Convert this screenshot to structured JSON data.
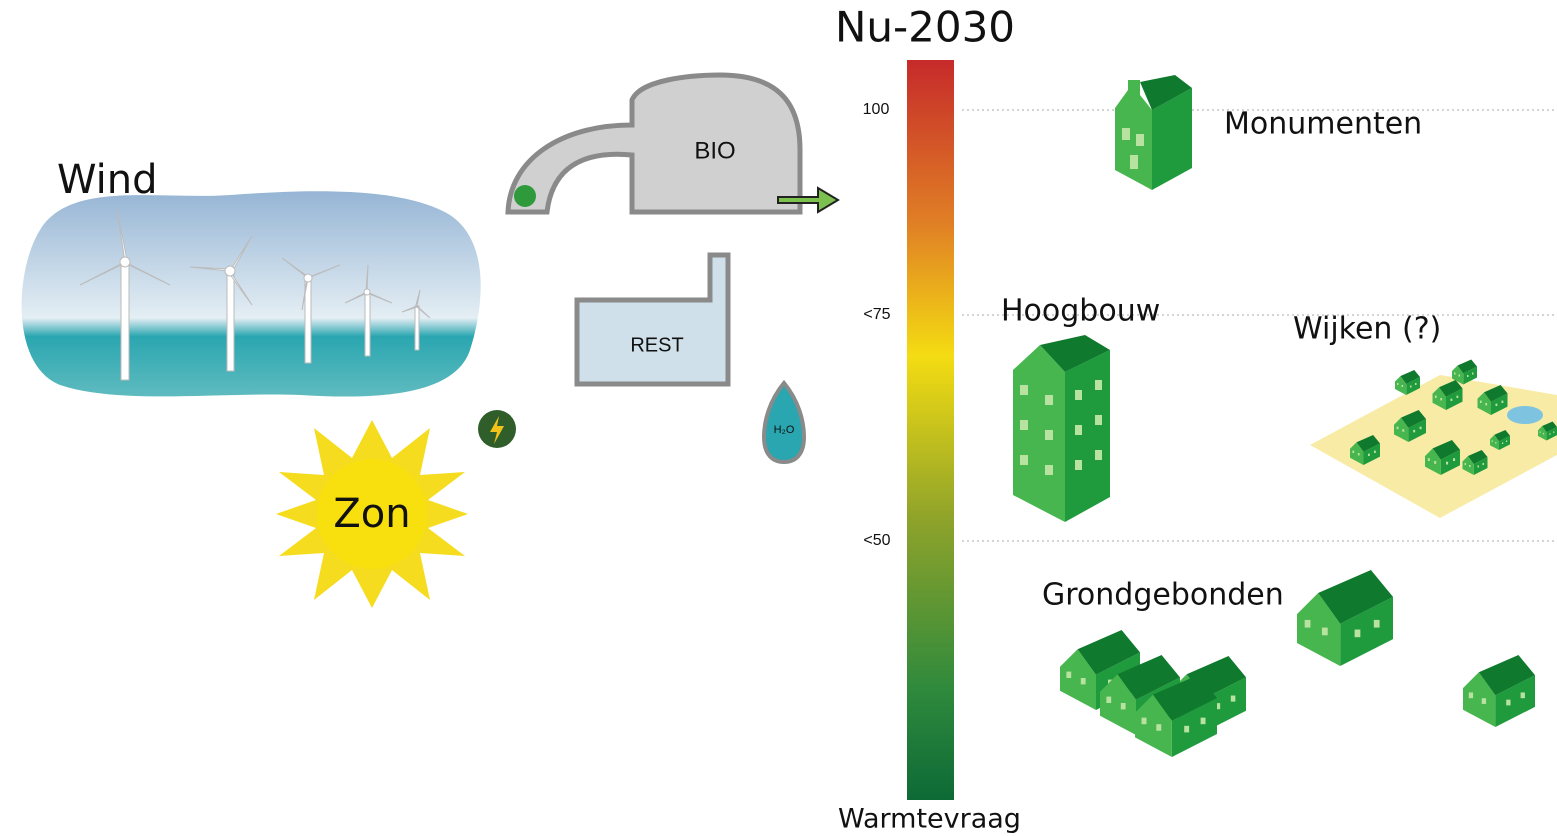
{
  "title": "Nu-2030",
  "sources": {
    "wind": "Wind",
    "sun": "Zon",
    "bio": "BIO",
    "rest": "REST",
    "water": "H₂O"
  },
  "scale": {
    "ticks": [
      "100",
      "<75",
      "<50"
    ],
    "axis_label": "Warmtevraag"
  },
  "building_types": {
    "monuments": "Monumenten",
    "high_rise": "Hoogbouw",
    "districts": "Wijken (?)",
    "ground_bound": "Grondgebonden"
  }
}
